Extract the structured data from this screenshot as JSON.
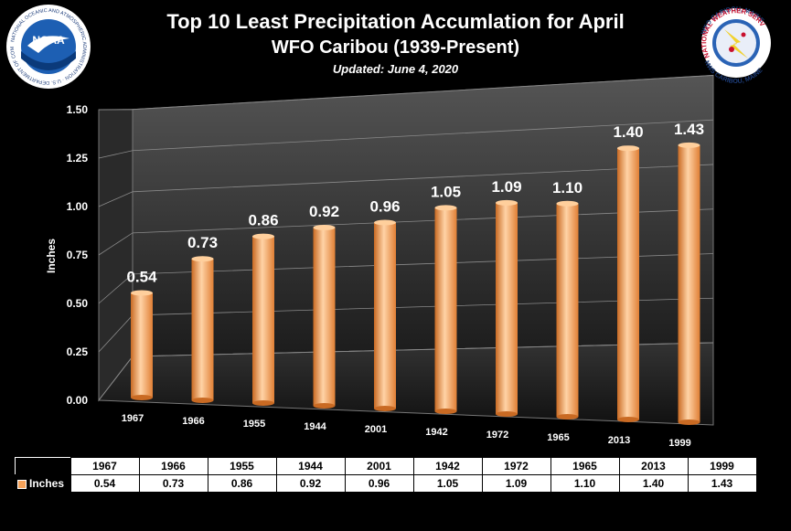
{
  "header": {
    "title": "Top 10 Least Precipitation Accumlation for April",
    "subtitle": "WFO Caribou (1939-Present)",
    "updated": "Updated: June 4, 2020"
  },
  "logos": {
    "left": {
      "name": "NOAA",
      "ring_text": "NATIONAL OCEANIC AND ATMOSPHERIC ADMINISTRATION · U.S. DEPARTMENT OF COMMERCE"
    },
    "right": {
      "top_text": "WFO CARIBOU, MAINE",
      "ring_text": "NATIONAL WEATHER SERVICE",
      "bottom_text": "NWS CARIBOU, MAINE"
    }
  },
  "colors": {
    "bar": "#f5a25a",
    "bar_dark": "#c96a23",
    "bar_light": "#ffd3a6",
    "grid": "#8a8a8a"
  },
  "chart_data": {
    "type": "bar",
    "title": "Top 10 Least Precipitation Accumlation for April",
    "ylabel": "Inches",
    "categories": [
      "1967",
      "1966",
      "1955",
      "1944",
      "2001",
      "1942",
      "1972",
      "1965",
      "2013",
      "1999"
    ],
    "series": [
      {
        "name": "Inches",
        "values": [
          0.54,
          0.73,
          0.86,
          0.92,
          0.96,
          1.05,
          1.09,
          1.1,
          1.4,
          1.43
        ]
      }
    ],
    "data_labels": [
      "0.54",
      "0.73",
      "0.86",
      "0.92",
      "0.96",
      "1.05",
      "1.09",
      "1.10",
      "1.40",
      "1.43"
    ],
    "ylim": [
      0,
      1.5
    ],
    "yticks": [
      "0.00",
      "0.25",
      "0.50",
      "0.75",
      "1.00",
      "1.25",
      "1.50"
    ],
    "grid": true,
    "legend": "bottom data table"
  },
  "table": {
    "headers": [
      "1967",
      "1966",
      "1955",
      "1944",
      "2001",
      "1942",
      "1972",
      "1965",
      "2013",
      "1999"
    ],
    "row_label": "Inches",
    "row_values": [
      "0.54",
      "0.73",
      "0.86",
      "0.92",
      "0.96",
      "1.05",
      "1.09",
      "1.10",
      "1.40",
      "1.43"
    ]
  }
}
